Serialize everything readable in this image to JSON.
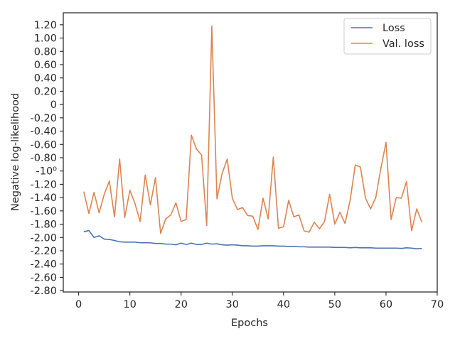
{
  "chart_data": {
    "type": "line",
    "xlabel": "Epochs",
    "ylabel": "Negative log-likelihood",
    "xlim": [
      -3,
      70
    ],
    "ylim": [
      -2.82,
      1.38
    ],
    "x_ticks": [
      0,
      10,
      20,
      30,
      40,
      50,
      60,
      70
    ],
    "x_tick_labels": [
      "0",
      "10",
      "20",
      "30",
      "40",
      "50",
      "60",
      "70"
    ],
    "y_tick_labels": [
      {
        "value": 1.2,
        "label": "1.20"
      },
      {
        "value": 1.0,
        "label": "1.00"
      },
      {
        "value": 0.8,
        "label": "0.80"
      },
      {
        "value": 0.6,
        "label": "0.60"
      },
      {
        "value": 0.4,
        "label": "0.40"
      },
      {
        "value": 0.2,
        "label": "0.20"
      },
      {
        "value": 0.0,
        "label": "0"
      },
      {
        "value": -0.2,
        "label": "-0.20"
      },
      {
        "value": -0.4,
        "label": "-0.40"
      },
      {
        "value": -0.6,
        "label": "-0.60"
      },
      {
        "value": -0.8,
        "label": "-0.80"
      },
      {
        "value": -1.0,
        "label": "-10⁰"
      },
      {
        "value": -1.2,
        "label": "-1.20"
      },
      {
        "value": -1.4,
        "label": "-1.40"
      },
      {
        "value": -1.6,
        "label": "-1.60"
      },
      {
        "value": -1.8,
        "label": "-1.80"
      },
      {
        "value": -2.0,
        "label": "-2.00"
      },
      {
        "value": -2.2,
        "label": "-2.20"
      },
      {
        "value": -2.4,
        "label": "-2.40"
      },
      {
        "value": -2.6,
        "label": "-2.60"
      },
      {
        "value": -2.8,
        "label": "-2.80"
      }
    ],
    "grid": false,
    "legend_position": "top-right",
    "x": [
      1,
      2,
      3,
      4,
      5,
      6,
      7,
      8,
      9,
      10,
      11,
      12,
      13,
      14,
      15,
      16,
      17,
      18,
      19,
      20,
      21,
      22,
      23,
      24,
      25,
      26,
      27,
      28,
      29,
      30,
      31,
      32,
      33,
      34,
      35,
      36,
      37,
      38,
      39,
      40,
      41,
      42,
      43,
      44,
      45,
      46,
      47,
      48,
      49,
      50,
      51,
      52,
      53,
      54,
      55,
      56,
      57,
      58,
      59,
      60,
      61,
      62,
      63,
      64,
      65,
      66,
      67
    ],
    "series": [
      {
        "name": "Loss",
        "color": "#4c72b0",
        "values": [
          -1.915,
          -1.895,
          -2.0,
          -1.975,
          -2.025,
          -2.03,
          -2.045,
          -2.065,
          -2.07,
          -2.07,
          -2.07,
          -2.08,
          -2.08,
          -2.08,
          -2.09,
          -2.09,
          -2.1,
          -2.1,
          -2.11,
          -2.085,
          -2.105,
          -2.085,
          -2.105,
          -2.105,
          -2.085,
          -2.1,
          -2.095,
          -2.11,
          -2.115,
          -2.11,
          -2.115,
          -2.125,
          -2.125,
          -2.13,
          -2.13,
          -2.125,
          -2.125,
          -2.125,
          -2.13,
          -2.13,
          -2.135,
          -2.135,
          -2.14,
          -2.14,
          -2.145,
          -2.145,
          -2.145,
          -2.145,
          -2.145,
          -2.15,
          -2.15,
          -2.15,
          -2.155,
          -2.15,
          -2.155,
          -2.155,
          -2.155,
          -2.16,
          -2.16,
          -2.16,
          -2.16,
          -2.16,
          -2.165,
          -2.155,
          -2.16,
          -2.17,
          -2.165
        ]
      },
      {
        "name": "Val. loss",
        "color": "#dd8452",
        "values": [
          -1.31,
          -1.64,
          -1.32,
          -1.63,
          -1.35,
          -1.15,
          -1.69,
          -0.82,
          -1.7,
          -1.29,
          -1.49,
          -1.76,
          -1.06,
          -1.51,
          -1.1,
          -1.94,
          -1.72,
          -1.66,
          -1.48,
          -1.76,
          -1.73,
          -0.46,
          -0.67,
          -0.76,
          -1.82,
          1.18,
          -1.42,
          -1.04,
          -0.82,
          -1.41,
          -1.58,
          -1.55,
          -1.67,
          -1.68,
          -1.88,
          -1.41,
          -1.72,
          -0.79,
          -1.86,
          -1.84,
          -1.44,
          -1.69,
          -1.66,
          -1.9,
          -1.92,
          -1.77,
          -1.87,
          -1.76,
          -1.35,
          -1.8,
          -1.62,
          -1.79,
          -1.44,
          -0.91,
          -0.94,
          -1.41,
          -1.57,
          -1.4,
          -0.96,
          -0.57,
          -1.73,
          -1.4,
          -1.41,
          -1.16,
          -1.9,
          -1.57,
          -1.77
        ]
      }
    ]
  }
}
